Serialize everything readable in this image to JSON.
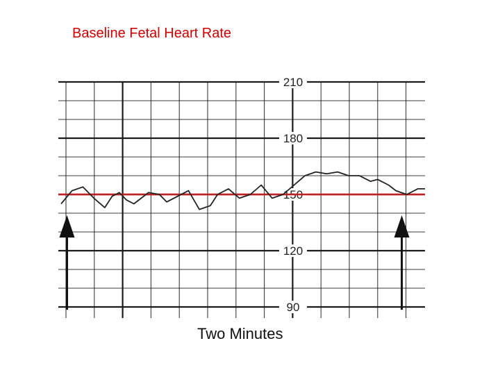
{
  "chart_data": {
    "type": "line",
    "title": "Baseline Fetal Heart Rate",
    "xlabel": "Two Minutes",
    "ylabel": "",
    "ylim": [
      90,
      210
    ],
    "yticks": [
      90,
      120,
      150,
      180,
      210
    ],
    "grid": true,
    "baseline": 150,
    "series": [
      {
        "x": [
          0.0,
          0.03,
          0.06,
          0.09,
          0.12,
          0.14,
          0.16,
          0.18,
          0.2,
          0.22,
          0.24,
          0.27,
          0.29,
          0.32,
          0.35,
          0.38,
          0.41,
          0.43,
          0.46,
          0.49,
          0.52,
          0.55,
          0.58,
          0.61,
          0.64,
          0.67,
          0.7,
          0.73,
          0.76,
          0.79,
          0.82,
          0.85,
          0.87,
          0.9,
          0.92,
          0.95,
          0.98,
          1.0
        ],
        "values": [
          145,
          152,
          154,
          148,
          143,
          149,
          151,
          147,
          145,
          148,
          151,
          150,
          146,
          149,
          152,
          142,
          144,
          150,
          153,
          148,
          150,
          155,
          148,
          150,
          155,
          160,
          162,
          161,
          162,
          160,
          160,
          157,
          158,
          155,
          152,
          150,
          153,
          153
        ]
      }
    ],
    "annotations": [
      {
        "type": "arrow",
        "x": 0.02
      },
      {
        "type": "arrow",
        "x": 0.94
      }
    ],
    "colors": {
      "trace": "#222222",
      "baseline": "#c0201f",
      "grid": "#1a1a1a",
      "title": "#cc0000"
    }
  }
}
